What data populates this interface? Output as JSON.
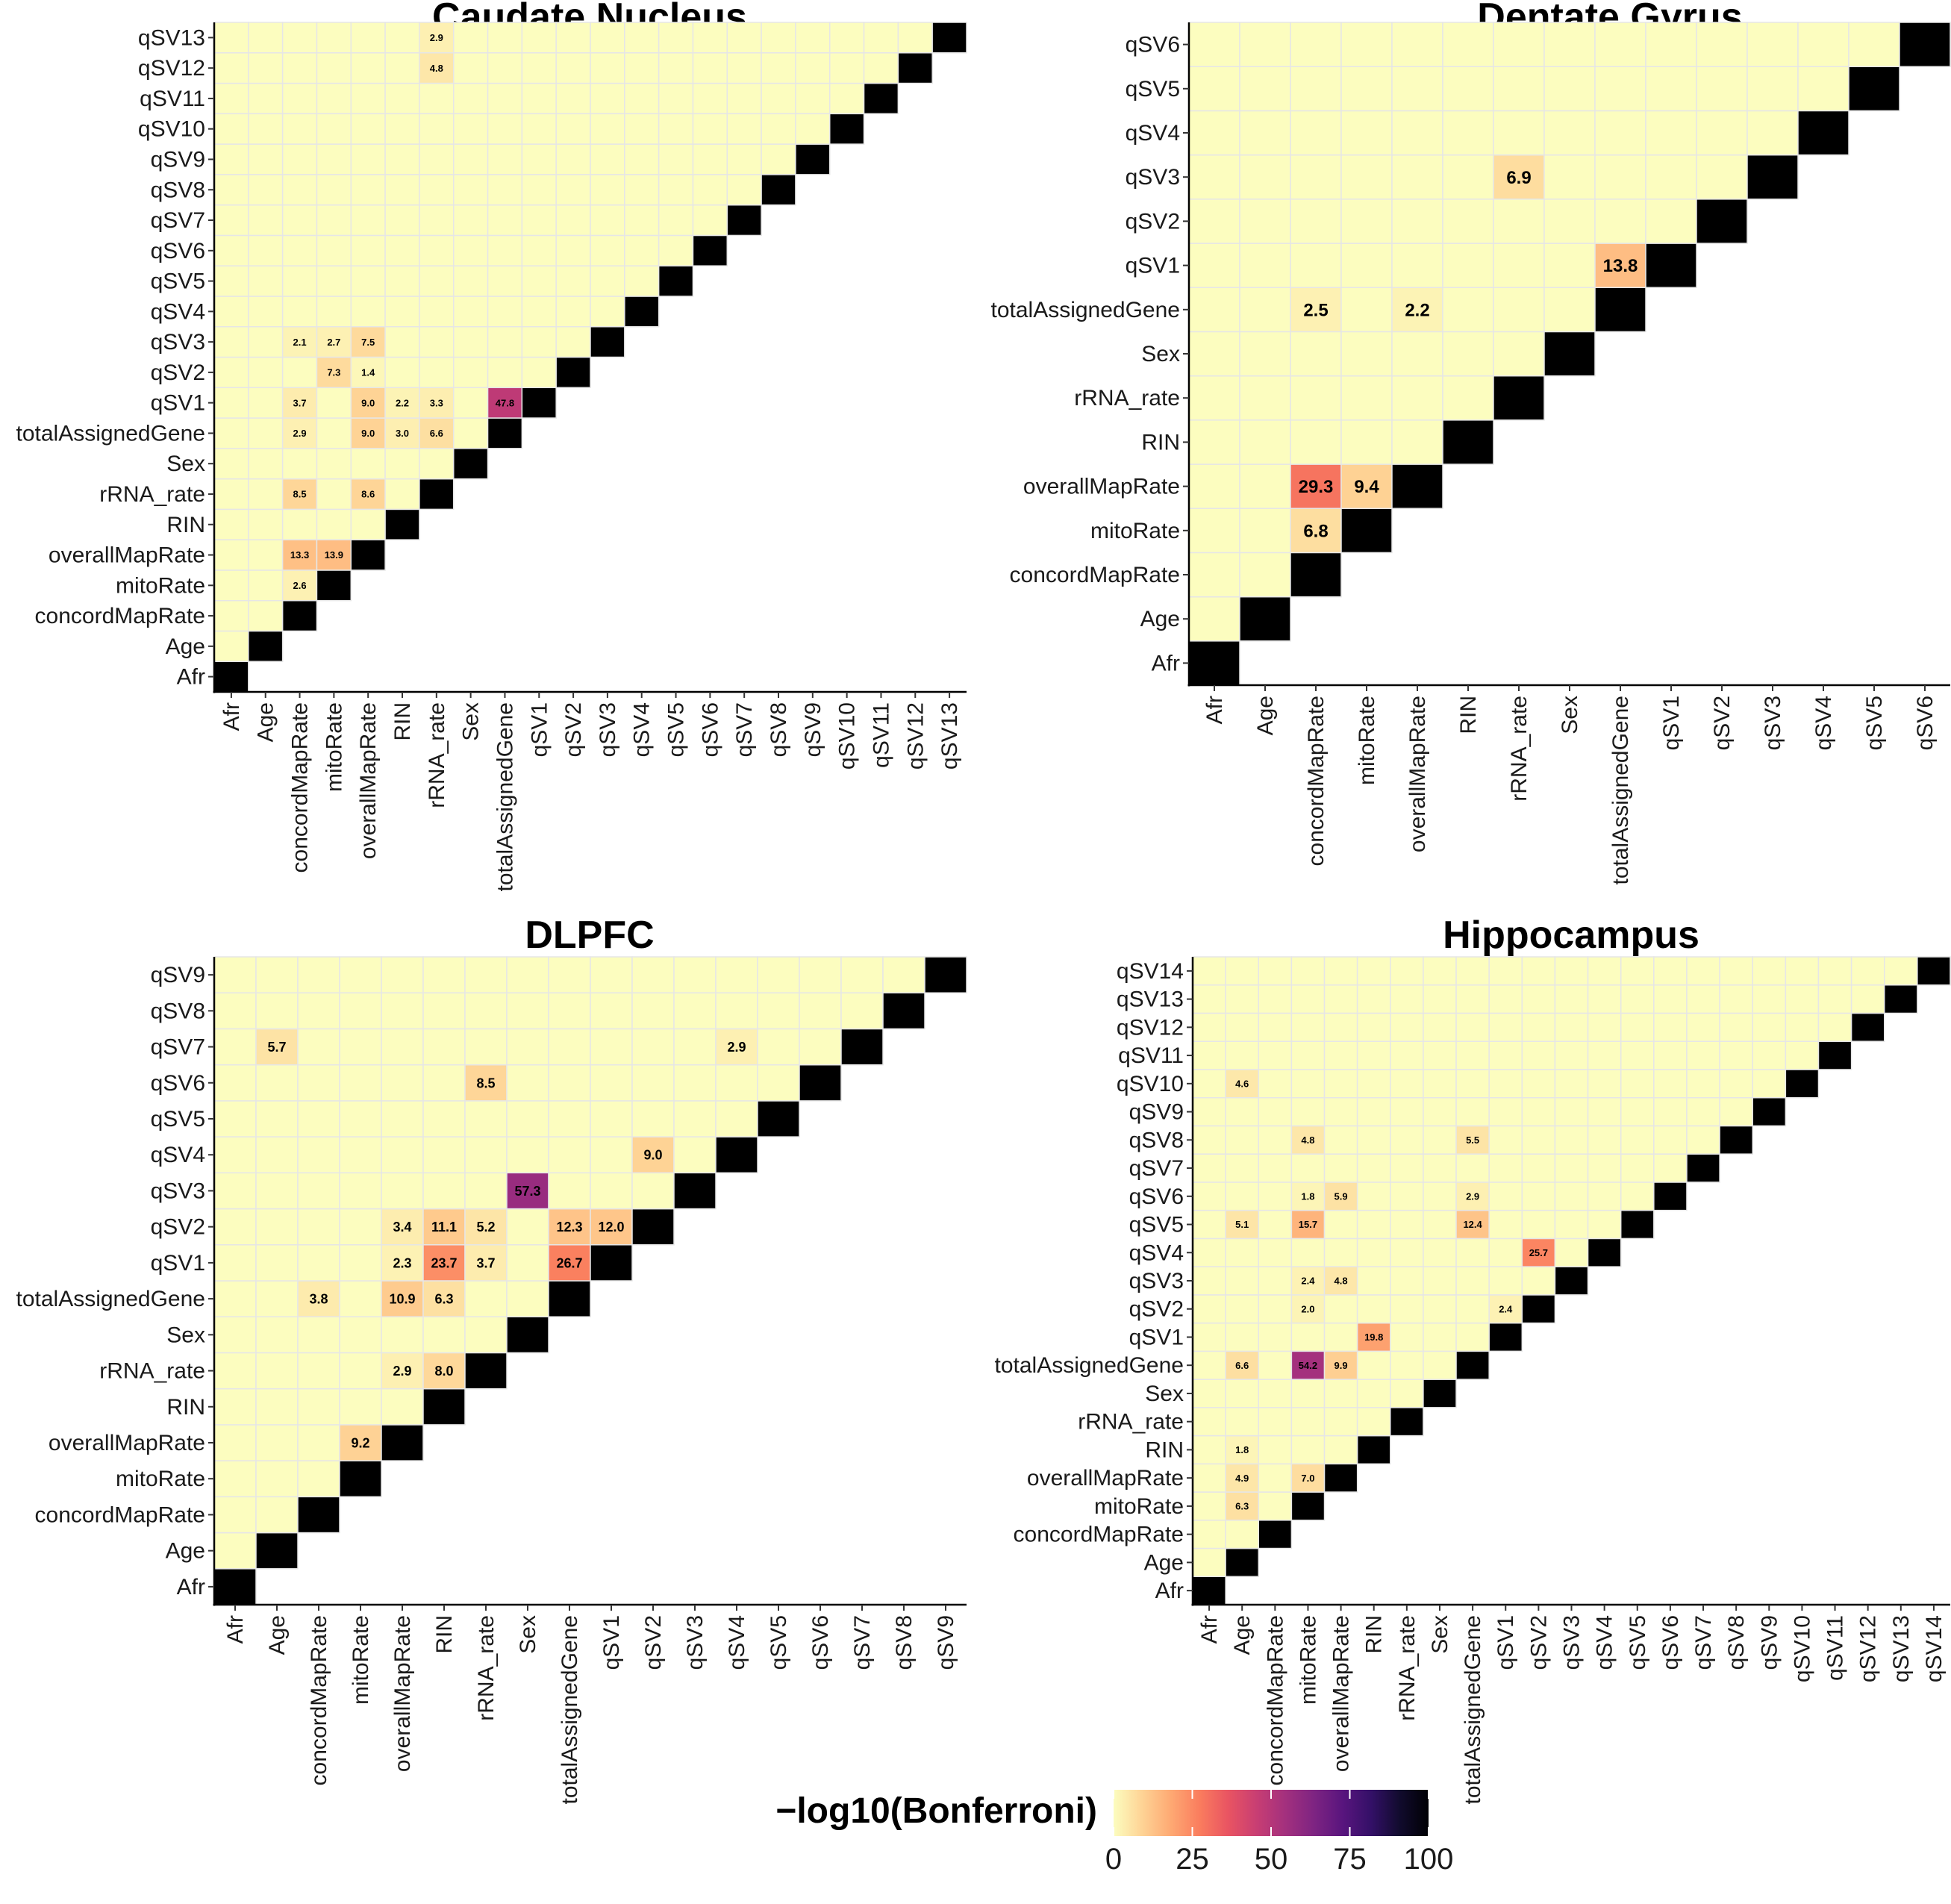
{
  "legend": {
    "title": "−log10(Bonferroni)",
    "ticks": [
      0,
      25,
      50,
      75,
      100
    ],
    "range": [
      0,
      100
    ],
    "palette": "magma (reversed)",
    "colors": [
      "#fcfdbf",
      "#fed395",
      "#fea973",
      "#fa7d5e",
      "#e95462",
      "#c83e73",
      "#a3307e",
      "#7e2482",
      "#59157e",
      "#331067",
      "#110b2d",
      "#000004"
    ]
  },
  "chart_data": [
    {
      "type": "heatmap",
      "title": "Caudate Nucleus",
      "variables": [
        "Afr",
        "Age",
        "concordMapRate",
        "mitoRate",
        "overallMapRate",
        "RIN",
        "rRNA_rate",
        "Sex",
        "totalAssignedGene",
        "qSV1",
        "qSV2",
        "qSV3",
        "qSV4",
        "qSV5",
        "qSV6",
        "qSV7",
        "qSV8",
        "qSV9",
        "qSV10",
        "qSV11",
        "qSV12",
        "qSV13"
      ],
      "diagonal_color": "#000000",
      "cells": [
        {
          "x": "concordMapRate",
          "y": "mitoRate",
          "value": 2.6,
          "label": "2.6"
        },
        {
          "x": "concordMapRate",
          "y": "overallMapRate",
          "value": 13.3,
          "label": "13.3"
        },
        {
          "x": "mitoRate",
          "y": "overallMapRate",
          "value": 13.9,
          "label": "13.9"
        },
        {
          "x": "concordMapRate",
          "y": "rRNA_rate",
          "value": 8.5,
          "label": "8.5"
        },
        {
          "x": "overallMapRate",
          "y": "rRNA_rate",
          "value": 8.6,
          "label": "8.6"
        },
        {
          "x": "concordMapRate",
          "y": "totalAssignedGene",
          "value": 2.9,
          "label": "2.9"
        },
        {
          "x": "overallMapRate",
          "y": "totalAssignedGene",
          "value": 9.0,
          "label": "9.0"
        },
        {
          "x": "RIN",
          "y": "totalAssignedGene",
          "value": 3.0,
          "label": "3.0"
        },
        {
          "x": "rRNA_rate",
          "y": "totalAssignedGene",
          "value": 6.6,
          "label": "6.6"
        },
        {
          "x": "concordMapRate",
          "y": "qSV1",
          "value": 3.7,
          "label": "3.7"
        },
        {
          "x": "overallMapRate",
          "y": "qSV1",
          "value": 9.0,
          "label": "9.0"
        },
        {
          "x": "RIN",
          "y": "qSV1",
          "value": 2.2,
          "label": "2.2"
        },
        {
          "x": "rRNA_rate",
          "y": "qSV1",
          "value": 3.3,
          "label": "3.3"
        },
        {
          "x": "totalAssignedGene",
          "y": "qSV1",
          "value": 47.8,
          "label": "47.8"
        },
        {
          "x": "mitoRate",
          "y": "qSV2",
          "value": 7.3,
          "label": "7.3"
        },
        {
          "x": "overallMapRate",
          "y": "qSV2",
          "value": 1.4,
          "label": "1.4"
        },
        {
          "x": "concordMapRate",
          "y": "qSV3",
          "value": 2.1,
          "label": "2.1"
        },
        {
          "x": "mitoRate",
          "y": "qSV3",
          "value": 2.7,
          "label": "2.7"
        },
        {
          "x": "overallMapRate",
          "y": "qSV3",
          "value": 7.5,
          "label": "7.5"
        },
        {
          "x": "rRNA_rate",
          "y": "qSV12",
          "value": 4.8,
          "label": "4.8"
        },
        {
          "x": "rRNA_rate",
          "y": "qSV13",
          "value": 2.9,
          "label": "2.9"
        }
      ]
    },
    {
      "type": "heatmap",
      "title": "Dentate Gyrus",
      "variables": [
        "Afr",
        "Age",
        "concordMapRate",
        "mitoRate",
        "overallMapRate",
        "RIN",
        "rRNA_rate",
        "Sex",
        "totalAssignedGene",
        "qSV1",
        "qSV2",
        "qSV3",
        "qSV4",
        "qSV5",
        "qSV6"
      ],
      "diagonal_color": "#000000",
      "cells": [
        {
          "x": "concordMapRate",
          "y": "mitoRate",
          "value": 6.8,
          "label": "6.8"
        },
        {
          "x": "concordMapRate",
          "y": "overallMapRate",
          "value": 29.3,
          "label": "29.3"
        },
        {
          "x": "mitoRate",
          "y": "overallMapRate",
          "value": 9.4,
          "label": "9.4"
        },
        {
          "x": "concordMapRate",
          "y": "totalAssignedGene",
          "value": 2.5,
          "label": "2.5"
        },
        {
          "x": "overallMapRate",
          "y": "totalAssignedGene",
          "value": 2.2,
          "label": "2.2"
        },
        {
          "x": "totalAssignedGene",
          "y": "qSV1",
          "value": 13.8,
          "label": "13.8"
        },
        {
          "x": "rRNA_rate",
          "y": "qSV3",
          "value": 6.9,
          "label": "6.9"
        }
      ]
    },
    {
      "type": "heatmap",
      "title": "DLPFC",
      "variables": [
        "Afr",
        "Age",
        "concordMapRate",
        "mitoRate",
        "overallMapRate",
        "RIN",
        "rRNA_rate",
        "Sex",
        "totalAssignedGene",
        "qSV1",
        "qSV2",
        "qSV3",
        "qSV4",
        "qSV5",
        "qSV6",
        "qSV7",
        "qSV8",
        "qSV9"
      ],
      "diagonal_color": "#000000",
      "cells": [
        {
          "x": "mitoRate",
          "y": "overallMapRate",
          "value": 9.2,
          "label": "9.2"
        },
        {
          "x": "overallMapRate",
          "y": "rRNA_rate",
          "value": 2.9,
          "label": "2.9"
        },
        {
          "x": "RIN",
          "y": "rRNA_rate",
          "value": 8.0,
          "label": "8.0"
        },
        {
          "x": "concordMapRate",
          "y": "totalAssignedGene",
          "value": 3.8,
          "label": "3.8"
        },
        {
          "x": "overallMapRate",
          "y": "totalAssignedGene",
          "value": 10.9,
          "label": "10.9"
        },
        {
          "x": "RIN",
          "y": "totalAssignedGene",
          "value": 6.3,
          "label": "6.3"
        },
        {
          "x": "overallMapRate",
          "y": "qSV1",
          "value": 2.3,
          "label": "2.3"
        },
        {
          "x": "RIN",
          "y": "qSV1",
          "value": 23.7,
          "label": "23.7"
        },
        {
          "x": "rRNA_rate",
          "y": "qSV1",
          "value": 3.7,
          "label": "3.7"
        },
        {
          "x": "totalAssignedGene",
          "y": "qSV1",
          "value": 26.7,
          "label": "26.7"
        },
        {
          "x": "overallMapRate",
          "y": "qSV2",
          "value": 3.4,
          "label": "3.4"
        },
        {
          "x": "RIN",
          "y": "qSV2",
          "value": 11.1,
          "label": "11.1"
        },
        {
          "x": "rRNA_rate",
          "y": "qSV2",
          "value": 5.2,
          "label": "5.2"
        },
        {
          "x": "totalAssignedGene",
          "y": "qSV2",
          "value": 12.3,
          "label": "12.3"
        },
        {
          "x": "qSV1",
          "y": "qSV2",
          "value": 12.0,
          "label": "12.0"
        },
        {
          "x": "Sex",
          "y": "qSV3",
          "value": 57.3,
          "label": "57.3"
        },
        {
          "x": "qSV2",
          "y": "qSV4",
          "value": 9.0,
          "label": "9.0"
        },
        {
          "x": "rRNA_rate",
          "y": "qSV6",
          "value": 8.5,
          "label": "8.5"
        },
        {
          "x": "Age",
          "y": "qSV7",
          "value": 5.7,
          "label": "5.7"
        },
        {
          "x": "qSV4",
          "y": "qSV7",
          "value": 2.9,
          "label": "2.9"
        }
      ]
    },
    {
      "type": "heatmap",
      "title": "Hippocampus",
      "variables": [
        "Afr",
        "Age",
        "concordMapRate",
        "mitoRate",
        "overallMapRate",
        "RIN",
        "rRNA_rate",
        "Sex",
        "totalAssignedGene",
        "qSV1",
        "qSV2",
        "qSV3",
        "qSV4",
        "qSV5",
        "qSV6",
        "qSV7",
        "qSV8",
        "qSV9",
        "qSV10",
        "qSV11",
        "qSV12",
        "qSV13",
        "qSV14"
      ],
      "diagonal_color": "#000000",
      "cells": [
        {
          "x": "Age",
          "y": "mitoRate",
          "value": 6.3,
          "label": "6.3"
        },
        {
          "x": "Age",
          "y": "overallMapRate",
          "value": 4.9,
          "label": "4.9"
        },
        {
          "x": "mitoRate",
          "y": "overallMapRate",
          "value": 7.0,
          "label": "7.0"
        },
        {
          "x": "Age",
          "y": "RIN",
          "value": 1.8,
          "label": "1.8"
        },
        {
          "x": "Age",
          "y": "totalAssignedGene",
          "value": 6.6,
          "label": "6.6"
        },
        {
          "x": "mitoRate",
          "y": "totalAssignedGene",
          "value": 54.2,
          "label": "54.2"
        },
        {
          "x": "overallMapRate",
          "y": "totalAssignedGene",
          "value": 9.9,
          "label": "9.9"
        },
        {
          "x": "RIN",
          "y": "qSV1",
          "value": 19.8,
          "label": "19.8"
        },
        {
          "x": "mitoRate",
          "y": "qSV2",
          "value": 2.0,
          "label": "2.0"
        },
        {
          "x": "qSV1",
          "y": "qSV2",
          "value": 2.4,
          "label": "2.4"
        },
        {
          "x": "mitoRate",
          "y": "qSV3",
          "value": 2.4,
          "label": "2.4"
        },
        {
          "x": "overallMapRate",
          "y": "qSV3",
          "value": 4.8,
          "label": "4.8"
        },
        {
          "x": "qSV2",
          "y": "qSV4",
          "value": 25.7,
          "label": "25.7"
        },
        {
          "x": "Age",
          "y": "qSV5",
          "value": 5.1,
          "label": "5.1"
        },
        {
          "x": "mitoRate",
          "y": "qSV5",
          "value": 15.7,
          "label": "15.7"
        },
        {
          "x": "totalAssignedGene",
          "y": "qSV5",
          "value": 12.4,
          "label": "12.4"
        },
        {
          "x": "mitoRate",
          "y": "qSV6",
          "value": 1.8,
          "label": "1.8"
        },
        {
          "x": "overallMapRate",
          "y": "qSV6",
          "value": 5.9,
          "label": "5.9"
        },
        {
          "x": "totalAssignedGene",
          "y": "qSV6",
          "value": 2.9,
          "label": "2.9"
        },
        {
          "x": "mitoRate",
          "y": "qSV8",
          "value": 4.8,
          "label": "4.8"
        },
        {
          "x": "totalAssignedGene",
          "y": "qSV8",
          "value": 5.5,
          "label": "5.5"
        },
        {
          "x": "Age",
          "y": "qSV10",
          "value": 4.6,
          "label": "4.6"
        }
      ]
    }
  ]
}
